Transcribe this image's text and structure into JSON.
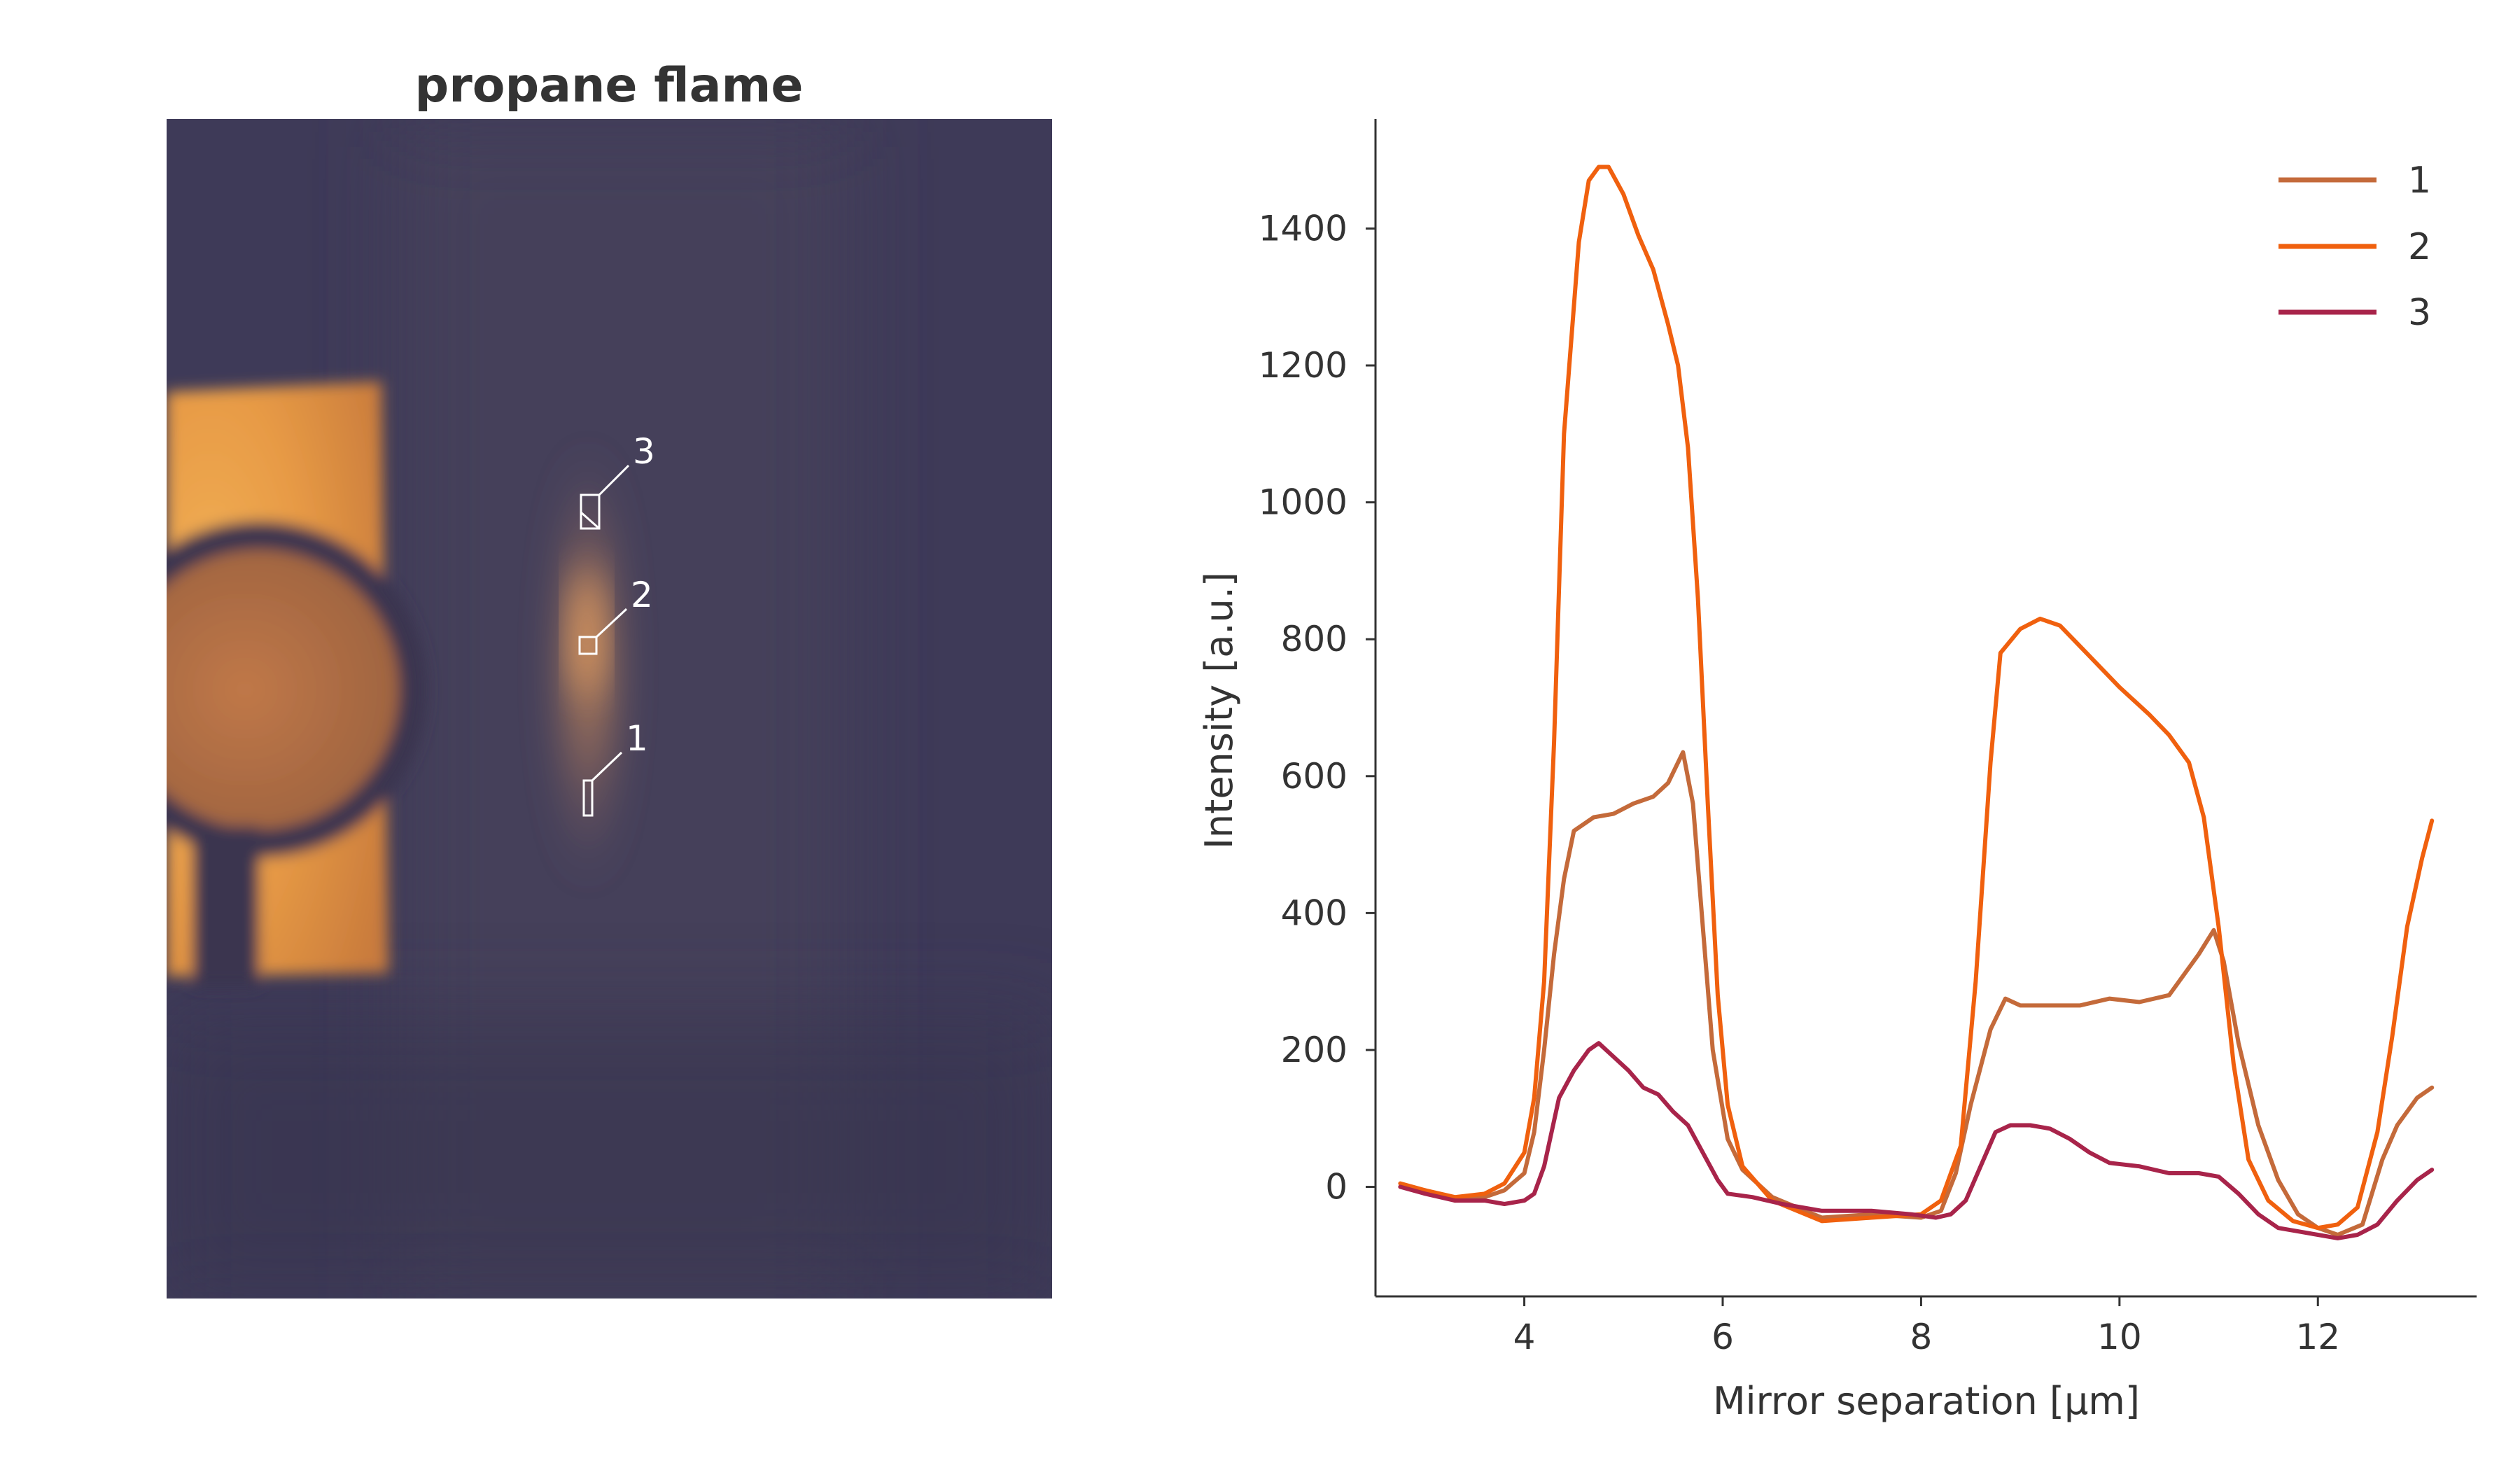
{
  "image_panel": {
    "title": "propane flame",
    "regions": [
      {
        "label": "1"
      },
      {
        "label": "2"
      },
      {
        "label": "3"
      }
    ]
  },
  "chart_data": {
    "type": "line",
    "title": "",
    "xlabel": "Mirror separation [µm]",
    "ylabel": "Intensity [a.u.]",
    "xlim": [
      2.5,
      13.6
    ],
    "ylim": [
      -160,
      1560
    ],
    "xticks": [
      4,
      6,
      8,
      10,
      12
    ],
    "yticks": [
      0,
      200,
      400,
      600,
      800,
      1000,
      1200,
      1400
    ],
    "grid": false,
    "legend": "top-right",
    "series": [
      {
        "name": "1",
        "color": "#c46a3a",
        "points": [
          [
            2.75,
            0
          ],
          [
            3.0,
            -5
          ],
          [
            3.3,
            -20
          ],
          [
            3.6,
            -15
          ],
          [
            3.8,
            -5
          ],
          [
            4.0,
            20
          ],
          [
            4.1,
            80
          ],
          [
            4.2,
            200
          ],
          [
            4.3,
            340
          ],
          [
            4.4,
            450
          ],
          [
            4.5,
            520
          ],
          [
            4.7,
            540
          ],
          [
            4.9,
            545
          ],
          [
            5.1,
            560
          ],
          [
            5.3,
            570
          ],
          [
            5.45,
            590
          ],
          [
            5.6,
            635
          ],
          [
            5.7,
            560
          ],
          [
            5.8,
            380
          ],
          [
            5.9,
            200
          ],
          [
            6.05,
            70
          ],
          [
            6.2,
            25
          ],
          [
            6.5,
            -15
          ],
          [
            7.0,
            -45
          ],
          [
            7.5,
            -40
          ],
          [
            8.0,
            -45
          ],
          [
            8.2,
            -35
          ],
          [
            8.35,
            20
          ],
          [
            8.5,
            120
          ],
          [
            8.7,
            230
          ],
          [
            8.85,
            275
          ],
          [
            9.0,
            265
          ],
          [
            9.3,
            265
          ],
          [
            9.6,
            265
          ],
          [
            9.9,
            275
          ],
          [
            10.2,
            270
          ],
          [
            10.5,
            280
          ],
          [
            10.8,
            340
          ],
          [
            10.95,
            375
          ],
          [
            11.05,
            330
          ],
          [
            11.2,
            210
          ],
          [
            11.4,
            90
          ],
          [
            11.6,
            10
          ],
          [
            11.8,
            -40
          ],
          [
            12.0,
            -60
          ],
          [
            12.2,
            -70
          ],
          [
            12.45,
            -55
          ],
          [
            12.65,
            40
          ],
          [
            12.8,
            90
          ],
          [
            13.0,
            130
          ],
          [
            13.15,
            145
          ]
        ]
      },
      {
        "name": "2",
        "color": "#f0600e",
        "points": [
          [
            2.75,
            5
          ],
          [
            3.0,
            -5
          ],
          [
            3.3,
            -15
          ],
          [
            3.6,
            -10
          ],
          [
            3.8,
            5
          ],
          [
            4.0,
            50
          ],
          [
            4.1,
            130
          ],
          [
            4.2,
            300
          ],
          [
            4.3,
            650
          ],
          [
            4.4,
            1100
          ],
          [
            4.55,
            1380
          ],
          [
            4.65,
            1470
          ],
          [
            4.75,
            1490
          ],
          [
            4.85,
            1490
          ],
          [
            5.0,
            1450
          ],
          [
            5.15,
            1390
          ],
          [
            5.3,
            1340
          ],
          [
            5.45,
            1260
          ],
          [
            5.55,
            1200
          ],
          [
            5.65,
            1080
          ],
          [
            5.75,
            860
          ],
          [
            5.85,
            560
          ],
          [
            5.95,
            280
          ],
          [
            6.05,
            120
          ],
          [
            6.2,
            30
          ],
          [
            6.5,
            -20
          ],
          [
            7.0,
            -50
          ],
          [
            7.5,
            -45
          ],
          [
            8.0,
            -40
          ],
          [
            8.2,
            -20
          ],
          [
            8.4,
            60
          ],
          [
            8.55,
            300
          ],
          [
            8.7,
            620
          ],
          [
            8.8,
            780
          ],
          [
            9.0,
            815
          ],
          [
            9.2,
            830
          ],
          [
            9.4,
            820
          ],
          [
            9.6,
            790
          ],
          [
            9.8,
            760
          ],
          [
            10.0,
            730
          ],
          [
            10.3,
            690
          ],
          [
            10.5,
            660
          ],
          [
            10.7,
            620
          ],
          [
            10.85,
            540
          ],
          [
            11.0,
            380
          ],
          [
            11.15,
            180
          ],
          [
            11.3,
            40
          ],
          [
            11.5,
            -20
          ],
          [
            11.75,
            -50
          ],
          [
            12.0,
            -60
          ],
          [
            12.2,
            -55
          ],
          [
            12.4,
            -30
          ],
          [
            12.6,
            80
          ],
          [
            12.75,
            220
          ],
          [
            12.9,
            380
          ],
          [
            13.05,
            480
          ],
          [
            13.15,
            535
          ]
        ]
      },
      {
        "name": "3",
        "color": "#a8244a",
        "points": [
          [
            2.75,
            0
          ],
          [
            3.0,
            -10
          ],
          [
            3.3,
            -20
          ],
          [
            3.6,
            -20
          ],
          [
            3.8,
            -25
          ],
          [
            4.0,
            -20
          ],
          [
            4.1,
            -10
          ],
          [
            4.2,
            30
          ],
          [
            4.35,
            130
          ],
          [
            4.5,
            170
          ],
          [
            4.65,
            200
          ],
          [
            4.75,
            210
          ],
          [
            4.9,
            190
          ],
          [
            5.05,
            170
          ],
          [
            5.2,
            145
          ],
          [
            5.35,
            135
          ],
          [
            5.5,
            110
          ],
          [
            5.65,
            90
          ],
          [
            5.8,
            50
          ],
          [
            5.95,
            10
          ],
          [
            6.05,
            -10
          ],
          [
            6.3,
            -15
          ],
          [
            6.6,
            -25
          ],
          [
            7.0,
            -35
          ],
          [
            7.5,
            -35
          ],
          [
            7.9,
            -40
          ],
          [
            8.15,
            -45
          ],
          [
            8.3,
            -40
          ],
          [
            8.45,
            -20
          ],
          [
            8.6,
            30
          ],
          [
            8.75,
            80
          ],
          [
            8.9,
            90
          ],
          [
            9.1,
            90
          ],
          [
            9.3,
            85
          ],
          [
            9.5,
            70
          ],
          [
            9.7,
            50
          ],
          [
            9.9,
            35
          ],
          [
            10.2,
            30
          ],
          [
            10.5,
            20
          ],
          [
            10.8,
            20
          ],
          [
            11.0,
            15
          ],
          [
            11.2,
            -10
          ],
          [
            11.4,
            -40
          ],
          [
            11.6,
            -60
          ],
          [
            11.8,
            -65
          ],
          [
            12.0,
            -70
          ],
          [
            12.2,
            -75
          ],
          [
            12.4,
            -70
          ],
          [
            12.6,
            -55
          ],
          [
            12.8,
            -20
          ],
          [
            13.0,
            10
          ],
          [
            13.15,
            25
          ]
        ]
      }
    ]
  },
  "colors": {
    "axis": "#333333",
    "text": "#333333",
    "image_background": "#3e3a58",
    "region_box": "#ffffff",
    "lamp_glow": "#e8a048"
  }
}
